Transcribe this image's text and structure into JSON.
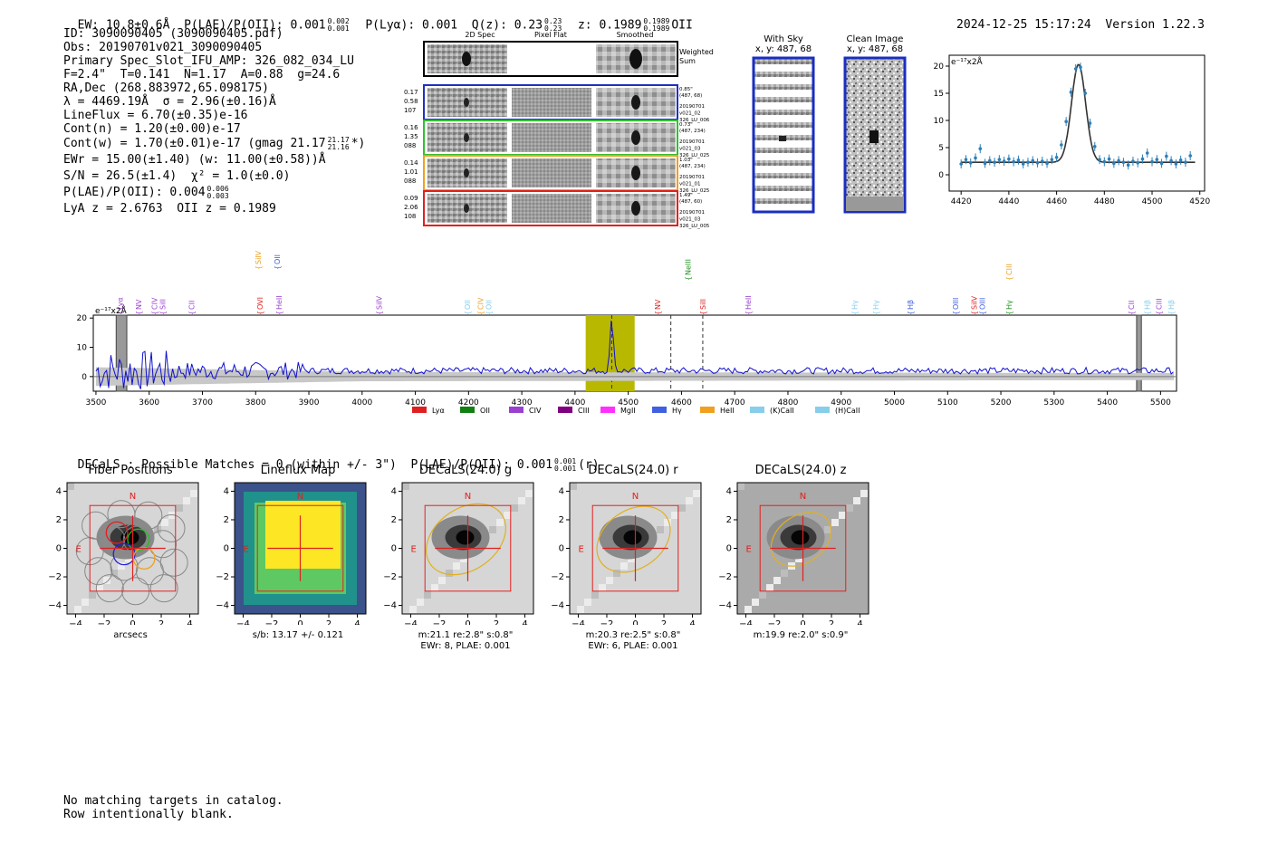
{
  "header": {
    "ew": "EW: 10.8±0.6Å",
    "plae_label": "P(LAE)/P(OII): 0.001",
    "plae_sup": "0.002",
    "plae_sub": "0.001",
    "plya": "P(Lyα): 0.001",
    "qz_label": "Q(z): 0.23",
    "qz_sup": "0.23",
    "qz_sub": "0.23",
    "z_label": "z: 0.1989",
    "z_sup": "0.1989",
    "z_sub": "0.1989",
    "z_line": "OII",
    "timestamp": "2024-12-25 15:17:24",
    "version": "Version 1.22.3"
  },
  "info": {
    "id": "ID: 3090090405 (3090090405.pdf)",
    "obs": "Obs: 20190701v021_3090090405",
    "primary": "Primary Spec_Slot_IFU_AMP: 326_082_034_LU",
    "params": "F=2.4\"  T=0.141  N=1.17  A=0.88  g=24.6",
    "radec": "RA,Dec (268.883972,65.098175)",
    "lambda": "λ = 4469.19Å  σ = 2.96(±0.16)Å",
    "lineflux": "LineFlux = 6.70(±0.35)e-16",
    "contn": "Cont(n) = 1.20(±0.00)e-17",
    "contw": "Cont(w) = 1.70(±0.01)e-17 (gmag 21.17",
    "contw_sup": "21.17",
    "contw_sub": "21.16",
    "contw_end": "*)",
    "ewr": "EWr = 15.00(±1.40) (w: 11.00(±0.58))Å",
    "sn": "S/N = 26.5(±1.4)  χ² = 1.0(±0.0)",
    "plae": "P(LAE)/P(OII): 0.004",
    "plae_sup": "0.006",
    "plae_sub": "0.003",
    "lyaz": "LyA z = 2.6763  OII z = 0.1989"
  },
  "cutouts": {
    "col_headers": [
      "2D Spec",
      "Pixel Flat",
      "Smoothed"
    ],
    "weighted_label": "Weighted\nSum",
    "rows": [
      {
        "stats": [
          "0.17",
          "0.58",
          "107"
        ],
        "color": "#2030c0",
        "meta": [
          "0.85\"",
          "(487, 68)",
          "20190701",
          "v021_02",
          "326_LU_006"
        ]
      },
      {
        "stats": [
          "0.16",
          "1.35",
          "088"
        ],
        "color": "#30c030",
        "meta": [
          "0.73\"",
          "(487, 234)",
          "20190701",
          "v021_03",
          "326_LU_025"
        ]
      },
      {
        "stats": [
          "0.14",
          "1.01",
          "088"
        ],
        "color": "#f0a020",
        "meta": [
          "1.03\"",
          "(487, 234)",
          "20190701",
          "v021_01",
          "326_LU_025"
        ]
      },
      {
        "stats": [
          "0.09",
          "2.06",
          "108"
        ],
        "color": "#e02020",
        "meta": [
          "1.49\"",
          "(487, 60)",
          "20190701",
          "v021_03",
          "326_LU_005"
        ]
      }
    ]
  },
  "sky": {
    "with_sky_title": "With Sky",
    "with_sky_coord": "x, y: 487, 68",
    "clean_title": "Clean Image",
    "clean_coord": "x, y: 487, 68"
  },
  "zoom_fit": {
    "unit_label": "e⁻¹⁷x2Å",
    "x_ticks": [
      "4420",
      "4440",
      "4460",
      "4480",
      "4500",
      "4520"
    ],
    "y_ticks": [
      "0",
      "5",
      "10",
      "15",
      "20"
    ]
  },
  "spectrum": {
    "unit_label": "e⁻¹⁷x2Å",
    "x_ticks": [
      "3500",
      "3600",
      "3700",
      "3800",
      "3900",
      "4000",
      "4100",
      "4200",
      "4300",
      "4400",
      "4500",
      "4600",
      "4700",
      "4800",
      "4900",
      "5000",
      "5100",
      "5200",
      "5300",
      "5400",
      "5500"
    ],
    "y_ticks": [
      "0",
      "10",
      "20"
    ],
    "lines": [
      {
        "name": "Lyα",
        "wave": 3545,
        "color": "#9a40d0",
        "tier": 0
      },
      {
        "name": "NV",
        "wave": 3580,
        "color": "#9a40d0",
        "tier": 0
      },
      {
        "name": "CIV",
        "wave": 3610,
        "color": "#9a40d0",
        "tier": 0
      },
      {
        "name": "SiII",
        "wave": 3625,
        "color": "#9a40d0",
        "tier": 0
      },
      {
        "name": "CII",
        "wave": 3680,
        "color": "#9a40d0",
        "tier": 0
      },
      {
        "name": "SiIV",
        "wave": 3805,
        "color": "#f0a020",
        "tier": 2
      },
      {
        "name": "OVI",
        "wave": 3808,
        "color": "#e02020",
        "tier": 0
      },
      {
        "name": "OII",
        "wave": 3840,
        "color": "#4060e0",
        "tier": 2
      },
      {
        "name": "HeII",
        "wave": 3844,
        "color": "#9a40d0",
        "tier": 0
      },
      {
        "name": "SiIV",
        "wave": 4032,
        "color": "#9a40d0",
        "tier": 0
      },
      {
        "name": "OII",
        "wave": 4198,
        "color": "#87ceeb",
        "tier": 0
      },
      {
        "name": "CIV",
        "wave": 4222,
        "color": "#f0a020",
        "tier": 0
      },
      {
        "name": "OII",
        "wave": 4238,
        "color": "#87ceeb",
        "tier": 0
      },
      {
        "name": "NV",
        "wave": 4555,
        "color": "#e02020",
        "tier": 0
      },
      {
        "name": "NeIII",
        "wave": 4612,
        "color": "#209020",
        "tier": 1
      },
      {
        "name": "SiII",
        "wave": 4640,
        "color": "#e02020",
        "tier": 0
      },
      {
        "name": "HeII",
        "wave": 4725,
        "color": "#9a40d0",
        "tier": 0
      },
      {
        "name": "Hγ",
        "wave": 4925,
        "color": "#87ceeb",
        "tier": 0
      },
      {
        "name": "Hγ",
        "wave": 4965,
        "color": "#87ceeb",
        "tier": 0
      },
      {
        "name": "Hβ",
        "wave": 5030,
        "color": "#4060e0",
        "tier": 0
      },
      {
        "name": "OIII",
        "wave": 5115,
        "color": "#4060e0",
        "tier": 0
      },
      {
        "name": "SiIV",
        "wave": 5150,
        "color": "#e02020",
        "tier": 0
      },
      {
        "name": "OIII",
        "wave": 5165,
        "color": "#4060e0",
        "tier": 0
      },
      {
        "name": "CIII",
        "wave": 5215,
        "color": "#f0a020",
        "tier": 1
      },
      {
        "name": "Hγ",
        "wave": 5215,
        "color": "#209020",
        "tier": 0
      },
      {
        "name": "CII",
        "wave": 5445,
        "color": "#9a40d0",
        "tier": 0
      },
      {
        "name": "Hβ",
        "wave": 5475,
        "color": "#87ceeb",
        "tier": 0
      },
      {
        "name": "CIII",
        "wave": 5497,
        "color": "#9a40d0",
        "tier": 0
      },
      {
        "name": "Hβ",
        "wave": 5520,
        "color": "#87ceeb",
        "tier": 0
      }
    ],
    "legend": [
      {
        "label": "Lyα",
        "color": "#e02020"
      },
      {
        "label": "OII",
        "color": "#108010"
      },
      {
        "label": "CIV",
        "color": "#9a40d0"
      },
      {
        "label": "CIII",
        "color": "#800080"
      },
      {
        "label": "MgII",
        "color": "#ff30ff"
      },
      {
        "label": "Hγ",
        "color": "#4060e0"
      },
      {
        "label": "HeII",
        "color": "#f0a020"
      },
      {
        "label": "(K)CaII",
        "color": "#87ceeb"
      },
      {
        "label": "(H)CaII",
        "color": "#87ceeb"
      }
    ]
  },
  "decals": {
    "summary": "DECaLS : Possible Matches = 0 (within +/- 3\")  P(LAE)/P(OII): 0.001",
    "summary_sup": "0.001",
    "summary_sub": "0.001",
    "summary_end": "(r)"
  },
  "panels": [
    {
      "title": "Fiber Positions",
      "caption1": "arcsecs",
      "caption2": ""
    },
    {
      "title": "Lineflux Map",
      "caption1": "s/b: 13.17 +/- 0.121",
      "caption2": ""
    },
    {
      "title": "DECaLS(24.0) g",
      "caption1": "m:21.1  re:2.8\"  s:0.8\"",
      "caption2": "EWr: 8, PLAE: 0.001"
    },
    {
      "title": "DECaLS(24.0) r",
      "caption1": "m:20.3  re:2.5\"  s:0.8\"",
      "caption2": "EWr: 6, PLAE: 0.001"
    },
    {
      "title": "DECaLS(24.0) z",
      "caption1": "m:19.9  re:2.0\"  s:0.9\"",
      "caption2": ""
    }
  ],
  "panel_ticks": [
    "−4",
    "−2",
    "0",
    "2",
    "4"
  ],
  "compass": {
    "n": "N",
    "e": "E"
  },
  "footer": {
    "line1": "No matching targets in catalog.",
    "line2": "Row intentionally blank."
  }
}
